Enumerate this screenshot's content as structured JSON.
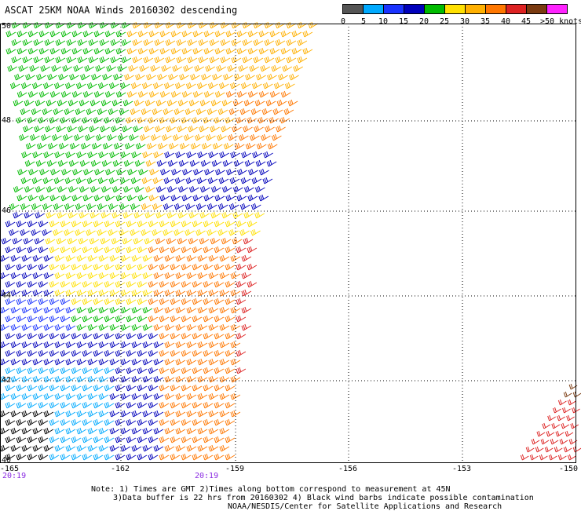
{
  "title": "ASCAT 25KM NOAA Winds 20160302 descending",
  "legend": {
    "colors": [
      "#555555",
      "#00aaff",
      "#1a33ff",
      "#0000bb",
      "#00bb00",
      "#ffe000",
      "#ffb000",
      "#ff7700",
      "#dd2222",
      "#7a3a10",
      "#ff22ff",
      "#6a00cc"
    ],
    "labels": [
      "0",
      "5",
      "10",
      "15",
      "20",
      "25",
      "30",
      "35",
      "40",
      "45",
      ">50 knots"
    ]
  },
  "lat_labels": [
    "50",
    "48",
    "46",
    "44",
    "42",
    "40"
  ],
  "lon_labels": [
    "-165",
    "-162",
    "-159",
    "-156",
    "-153",
    "-150"
  ],
  "times": [
    "20:19",
    "20:19"
  ],
  "notes": [
    "Note: 1) Times are GMT 2)Times along bottom correspond to measurement at 45N",
    "3)Data buffer is 22 hrs from 20160302 4) Black wind barbs indicate possible contamination",
    "NOAA/NESDIS/Center for Satellite Applications and Research"
  ]
}
